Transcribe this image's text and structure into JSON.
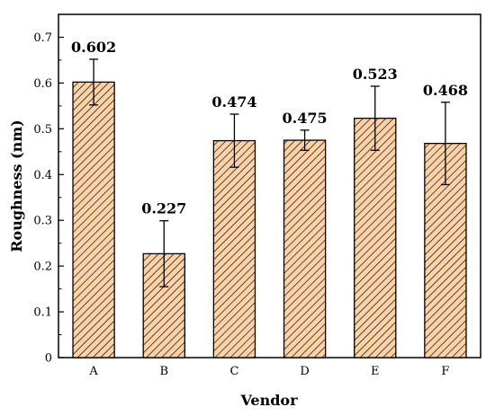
{
  "chart_data": {
    "type": "bar",
    "categories": [
      "A",
      "B",
      "C",
      "D",
      "E",
      "F"
    ],
    "values": [
      0.602,
      0.227,
      0.474,
      0.475,
      0.523,
      0.468
    ],
    "errors": [
      0.05,
      0.072,
      0.058,
      0.022,
      0.07,
      0.09
    ],
    "data_labels": [
      "0.602",
      "0.227",
      "0.474",
      "0.475",
      "0.523",
      "0.468"
    ],
    "xlabel": "Vendor",
    "ylabel": "Roughness (nm)",
    "ylim": [
      0,
      0.75
    ],
    "yticks": [
      0,
      0.1,
      0.2,
      0.3,
      0.4,
      0.5,
      0.6,
      0.7
    ],
    "ytick_labels": [
      "0",
      "0.1",
      "0.2",
      "0.3",
      "0.4",
      "0.5",
      "0.6",
      "0.7"
    ],
    "grid": false,
    "bar_fill_color": "#fbd2a8",
    "hatch_color": "#000000",
    "hatch": "diagonal"
  }
}
